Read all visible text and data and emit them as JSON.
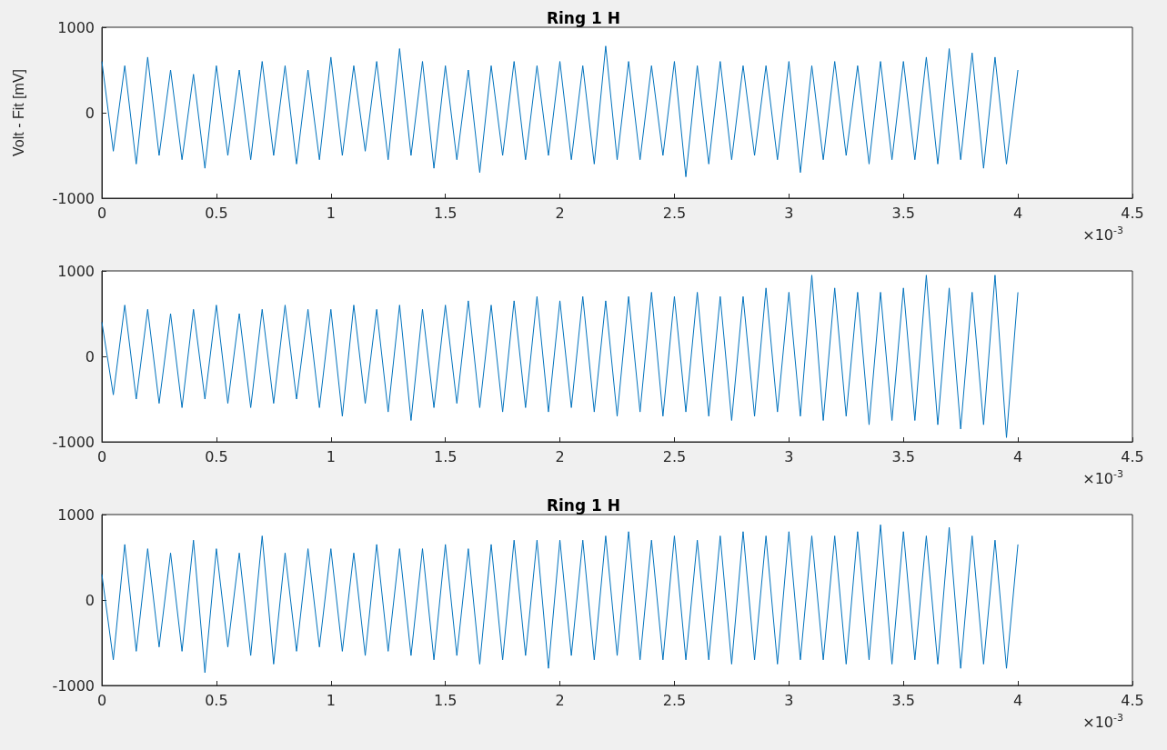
{
  "chart_data": [
    {
      "type": "line",
      "title": "Ring 1 H",
      "ylabel": "Volt - Fit [mV]",
      "annotations": [
        "×10$^{-3}$"
      ],
      "x": [
        0,
        0.05,
        0.1,
        0.15,
        0.2,
        0.25,
        0.3,
        0.35,
        0.4,
        0.45,
        0.5,
        0.55,
        0.6,
        0.65,
        0.7,
        0.75,
        0.8,
        0.85,
        0.9,
        0.95,
        1,
        1.05,
        1.1,
        1.15,
        1.2,
        1.25,
        1.3,
        1.35,
        1.4,
        1.45,
        1.5,
        1.55,
        1.6,
        1.65,
        1.7,
        1.75,
        1.8,
        1.85,
        1.9,
        1.95,
        2,
        2.05,
        2.1,
        2.15,
        2.2,
        2.25,
        2.3,
        2.35,
        2.4,
        2.45,
        2.5,
        2.55,
        2.6,
        2.65,
        2.7,
        2.75,
        2.8,
        2.85,
        2.9,
        2.95,
        3,
        3.05,
        3.1,
        3.15,
        3.2,
        3.25,
        3.3,
        3.35,
        3.4,
        3.45,
        3.5,
        3.55,
        3.6,
        3.65,
        3.7,
        3.75,
        3.8,
        3.85,
        3.9,
        3.95,
        4
      ],
      "series": [
        {
          "color": "#0072bd",
          "values": [
            600,
            -450,
            550,
            -600,
            650,
            -500,
            500,
            -550,
            450,
            -650,
            550,
            -500,
            500,
            -550,
            600,
            -500,
            550,
            -600,
            500,
            -550,
            650,
            -500,
            550,
            -450,
            600,
            -550,
            750,
            -500,
            600,
            -650,
            550,
            -550,
            500,
            -700,
            550,
            -500,
            600,
            -550,
            550,
            -500,
            600,
            -550,
            550,
            -600,
            780,
            -550,
            600,
            -550,
            550,
            -500,
            600,
            -750,
            550,
            -600,
            600,
            -550,
            550,
            -500,
            550,
            -550,
            600,
            -700,
            550,
            -550,
            600,
            -500,
            550,
            -600,
            600,
            -550,
            600,
            -550,
            650,
            -600,
            750,
            -550,
            700,
            -650,
            650,
            -600,
            500
          ]
        }
      ],
      "xlim": [
        0,
        4.5
      ],
      "xticks": [
        0,
        0.5,
        1,
        1.5,
        2,
        2.5,
        3,
        3.5,
        4,
        4.5
      ],
      "ylim": [
        -1000,
        1000
      ],
      "yticks": [
        -1000,
        0,
        1000
      ]
    },
    {
      "type": "line",
      "annotations": [
        "×10$^{-3}$"
      ],
      "x": [
        0,
        0.05,
        0.1,
        0.15,
        0.2,
        0.25,
        0.3,
        0.35,
        0.4,
        0.45,
        0.5,
        0.55,
        0.6,
        0.65,
        0.7,
        0.75,
        0.8,
        0.85,
        0.9,
        0.95,
        1,
        1.05,
        1.1,
        1.15,
        1.2,
        1.25,
        1.3,
        1.35,
        1.4,
        1.45,
        1.5,
        1.55,
        1.6,
        1.65,
        1.7,
        1.75,
        1.8,
        1.85,
        1.9,
        1.95,
        2,
        2.05,
        2.1,
        2.15,
        2.2,
        2.25,
        2.3,
        2.35,
        2.4,
        2.45,
        2.5,
        2.55,
        2.6,
        2.65,
        2.7,
        2.75,
        2.8,
        2.85,
        2.9,
        2.95,
        3,
        3.05,
        3.1,
        3.15,
        3.2,
        3.25,
        3.3,
        3.35,
        3.4,
        3.45,
        3.5,
        3.55,
        3.6,
        3.65,
        3.7,
        3.75,
        3.8,
        3.85,
        3.9,
        3.95,
        4
      ],
      "series": [
        {
          "color": "#0072bd",
          "values": [
            400,
            -450,
            600,
            -500,
            550,
            -550,
            500,
            -600,
            550,
            -500,
            600,
            -550,
            500,
            -600,
            550,
            -550,
            600,
            -500,
            550,
            -600,
            550,
            -700,
            600,
            -550,
            550,
            -650,
            600,
            -750,
            550,
            -600,
            600,
            -550,
            650,
            -600,
            600,
            -650,
            650,
            -600,
            700,
            -650,
            650,
            -600,
            700,
            -650,
            650,
            -700,
            700,
            -650,
            750,
            -700,
            700,
            -650,
            750,
            -700,
            700,
            -750,
            700,
            -700,
            800,
            -650,
            750,
            -700,
            950,
            -750,
            800,
            -700,
            750,
            -800,
            750,
            -750,
            800,
            -750,
            950,
            -800,
            800,
            -850,
            750,
            -800,
            950,
            -950,
            750
          ]
        }
      ],
      "xlim": [
        0,
        4.5
      ],
      "xticks": [
        0,
        0.5,
        1,
        1.5,
        2,
        2.5,
        3,
        3.5,
        4,
        4.5
      ],
      "ylim": [
        -1000,
        1000
      ],
      "yticks": [
        -1000,
        0,
        1000
      ]
    },
    {
      "type": "line",
      "title": "Ring 1 H",
      "annotations": [
        "×10$^{-3}$"
      ],
      "x": [
        0,
        0.05,
        0.1,
        0.15,
        0.2,
        0.25,
        0.3,
        0.35,
        0.4,
        0.45,
        0.5,
        0.55,
        0.6,
        0.65,
        0.7,
        0.75,
        0.8,
        0.85,
        0.9,
        0.95,
        1,
        1.05,
        1.1,
        1.15,
        1.2,
        1.25,
        1.3,
        1.35,
        1.4,
        1.45,
        1.5,
        1.55,
        1.6,
        1.65,
        1.7,
        1.75,
        1.8,
        1.85,
        1.9,
        1.95,
        2,
        2.05,
        2.1,
        2.15,
        2.2,
        2.25,
        2.3,
        2.35,
        2.4,
        2.45,
        2.5,
        2.55,
        2.6,
        2.65,
        2.7,
        2.75,
        2.8,
        2.85,
        2.9,
        2.95,
        3,
        3.05,
        3.1,
        3.15,
        3.2,
        3.25,
        3.3,
        3.35,
        3.4,
        3.45,
        3.5,
        3.55,
        3.6,
        3.65,
        3.7,
        3.75,
        3.8,
        3.85,
        3.9,
        3.95,
        4
      ],
      "series": [
        {
          "color": "#0072bd",
          "values": [
            300,
            -700,
            650,
            -600,
            600,
            -550,
            550,
            -600,
            700,
            -850,
            600,
            -550,
            550,
            -650,
            750,
            -750,
            550,
            -600,
            600,
            -550,
            600,
            -600,
            550,
            -650,
            650,
            -600,
            600,
            -650,
            600,
            -700,
            650,
            -650,
            600,
            -750,
            650,
            -700,
            700,
            -650,
            700,
            -800,
            700,
            -650,
            700,
            -700,
            750,
            -650,
            800,
            -700,
            700,
            -700,
            750,
            -700,
            700,
            -700,
            750,
            -750,
            800,
            -700,
            750,
            -750,
            800,
            -700,
            750,
            -700,
            750,
            -750,
            800,
            -700,
            880,
            -750,
            800,
            -700,
            750,
            -750,
            850,
            -800,
            750,
            -750,
            700,
            -800,
            650
          ]
        }
      ],
      "xlim": [
        0,
        4.5
      ],
      "xticks": [
        0,
        0.5,
        1,
        1.5,
        2,
        2.5,
        3,
        3.5,
        4,
        4.5
      ],
      "ylim": [
        -1000,
        1000
      ],
      "yticks": [
        -1000,
        0,
        1000
      ]
    }
  ]
}
